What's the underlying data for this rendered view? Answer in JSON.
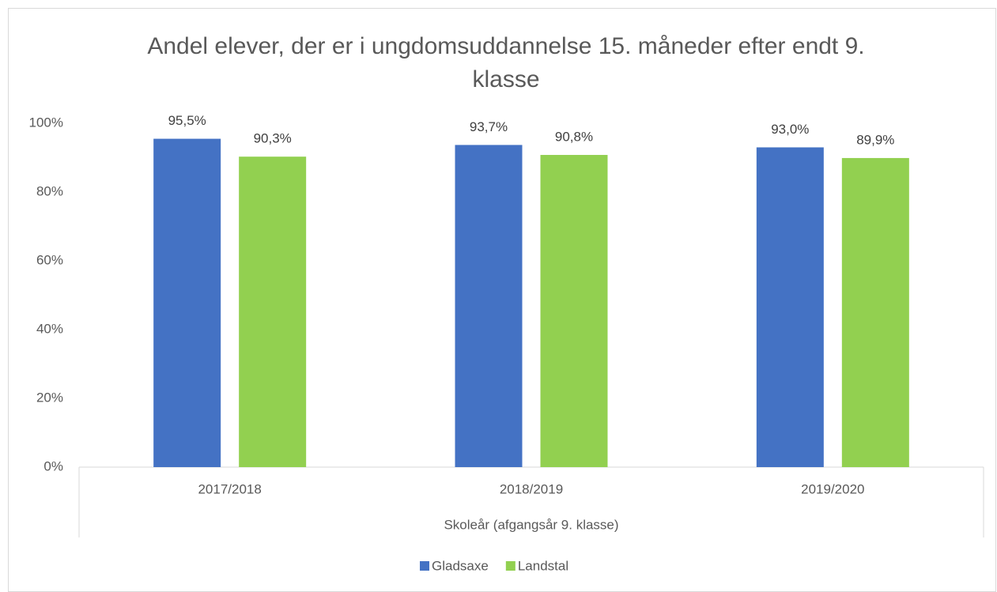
{
  "chart_data": {
    "type": "bar",
    "title": "Andel elever, der er i ungdomsuddannelse 15. måneder efter endt 9. klasse",
    "x_label": "Skoleår (afgangsår 9. klasse)",
    "categories": [
      "2017/2018",
      "2018/2019",
      "2019/2020"
    ],
    "series": [
      {
        "name": "Gladsaxe",
        "color": "#4472c4",
        "values": [
          95.5,
          93.7,
          93.0
        ],
        "value_labels": [
          "95,5%",
          "93,7%",
          "93,0%"
        ]
      },
      {
        "name": "Landstal",
        "color": "#92d050",
        "values": [
          90.3,
          90.8,
          89.9
        ],
        "value_labels": [
          "90,3%",
          "90,8%",
          "89,9%"
        ]
      }
    ],
    "ylim": [
      0,
      100
    ],
    "yticks": [
      {
        "value": 0,
        "label": "0%"
      },
      {
        "value": 20,
        "label": "20%"
      },
      {
        "value": 40,
        "label": "40%"
      },
      {
        "value": 60,
        "label": "60%"
      },
      {
        "value": 80,
        "label": "80%"
      },
      {
        "value": 100,
        "label": "100%"
      }
    ],
    "grid": false,
    "legend": "bottom"
  }
}
